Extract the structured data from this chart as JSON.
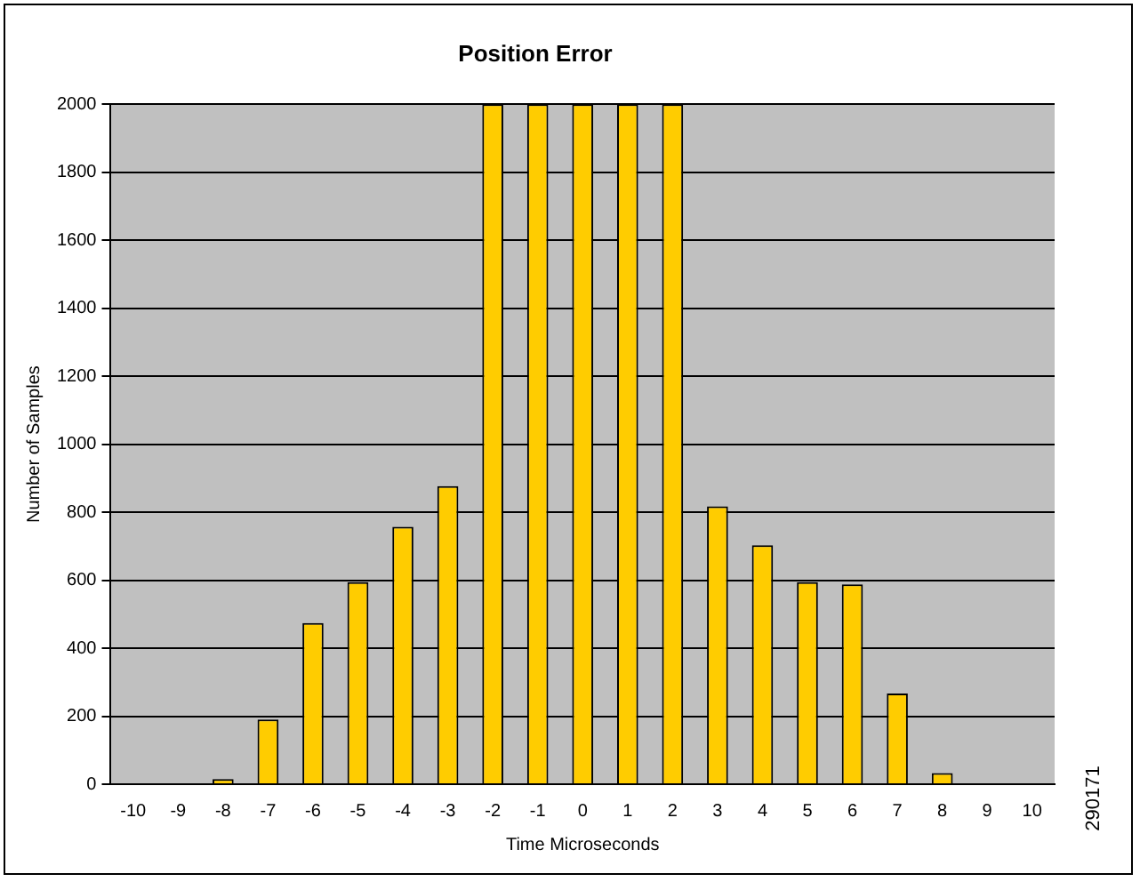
{
  "chart_data": {
    "type": "bar",
    "title": "Position Error",
    "xlabel": "Time Microseconds",
    "ylabel": "Number of Samples",
    "categories": [
      "-10",
      "-9",
      "-8",
      "-7",
      "-6",
      "-5",
      "-4",
      "-3",
      "-2",
      "-1",
      "0",
      "1",
      "2",
      "3",
      "4",
      "5",
      "6",
      "7",
      "8",
      "9",
      "10"
    ],
    "values": [
      0,
      0,
      15,
      190,
      474,
      594,
      757,
      877,
      2000,
      2000,
      2000,
      2000,
      2000,
      817,
      703,
      594,
      588,
      267,
      33,
      0,
      0
    ],
    "color": "#ffcc00",
    "ylim": [
      0,
      2000
    ],
    "yticks": [
      0,
      200,
      400,
      600,
      800,
      1000,
      1200,
      1400,
      1600,
      1800,
      2000
    ],
    "grid": "y",
    "legend": false,
    "annotations": [
      "290171"
    ]
  }
}
